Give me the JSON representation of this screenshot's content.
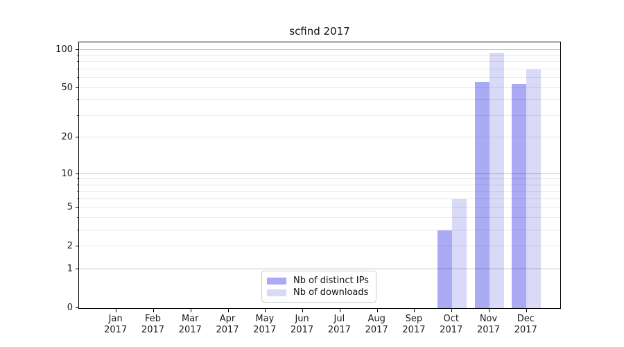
{
  "figure": {
    "title": "scfind 2017",
    "background": "#ffffff"
  },
  "chart_data": {
    "type": "bar",
    "title": "scfind 2017",
    "x": {
      "months": [
        "Jan",
        "Feb",
        "Mar",
        "Apr",
        "May",
        "Jun",
        "Jul",
        "Aug",
        "Sep",
        "Oct",
        "Nov",
        "Dec"
      ],
      "year": "2017"
    },
    "categories": [
      "Jan 2017",
      "Feb 2017",
      "Mar 2017",
      "Apr 2017",
      "May 2017",
      "Jun 2017",
      "Jul 2017",
      "Aug 2017",
      "Sep 2017",
      "Oct 2017",
      "Nov 2017",
      "Dec 2017"
    ],
    "series": [
      {
        "key": "distinct-ips",
        "name": "Nb of distinct IPs",
        "color": "#aaaaf5",
        "values": [
          0,
          0,
          0,
          0,
          0,
          0,
          0,
          0,
          0,
          3,
          56,
          54
        ]
      },
      {
        "key": "downloads",
        "name": "Nb of downloads",
        "color": "#d9d9f8",
        "values": [
          0,
          0,
          0,
          0,
          0,
          0,
          0,
          0,
          0,
          6,
          95,
          70
        ]
      }
    ],
    "yscale": "log1p",
    "ylim": [
      0,
      117
    ],
    "y_ticks": [
      0,
      1,
      2,
      5,
      10,
      20,
      50,
      100
    ],
    "y_gridlines_major": [
      1,
      10,
      100
    ],
    "y_gridlines_minor": [
      2,
      3,
      4,
      5,
      6,
      7,
      8,
      9,
      20,
      30,
      40,
      50,
      60,
      70,
      80,
      90
    ],
    "grid": true,
    "legend_position": "lower center"
  },
  "colors": {
    "bar_distinct_ips": "#aaaaf5",
    "bar_downloads": "#d9d9f8",
    "grid_major": "rgba(0,0,0,0.24)",
    "grid_minor": "rgba(0,0,0,0.085)",
    "spine": "#000000",
    "legend_border": "#cccccc"
  }
}
